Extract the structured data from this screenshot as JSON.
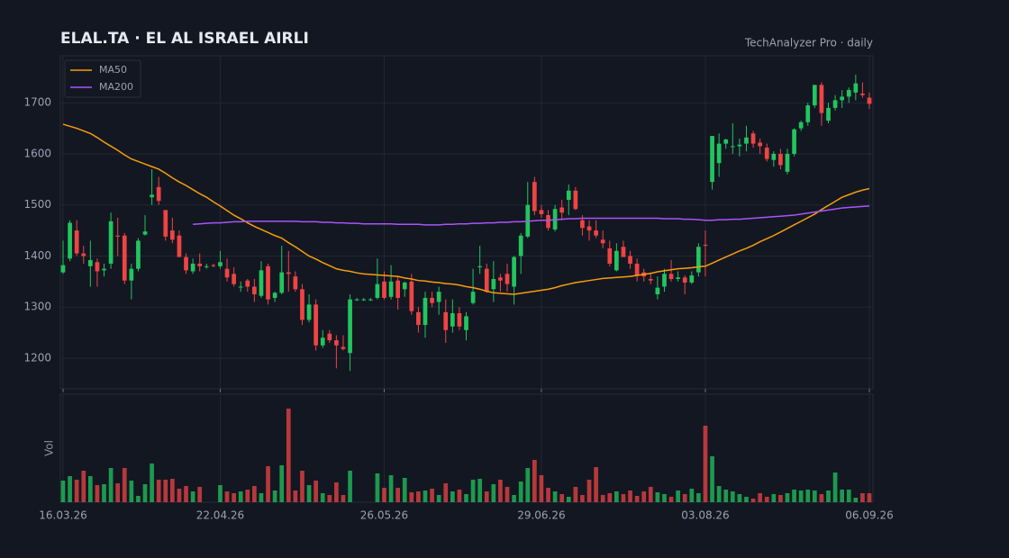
{
  "chart_data": {
    "type": "candlestick",
    "title": "ELAL.TA  ·  EL AL ISRAEL AIRLI",
    "subtitle": "TechAnalyzer Pro · daily",
    "categories": [
      "16.03.26",
      null,
      null,
      null,
      null,
      null,
      null,
      null,
      null,
      null,
      null,
      null,
      null,
      null,
      null,
      null,
      null,
      null,
      null,
      null,
      null,
      null,
      null,
      "22.04.26",
      null,
      null,
      null,
      null,
      null,
      null,
      null,
      null,
      null,
      null,
      null,
      null,
      null,
      null,
      null,
      null,
      null,
      null,
      null,
      null,
      null,
      null,
      null,
      "26.05.26",
      null,
      null,
      null,
      null,
      null,
      null,
      null,
      null,
      null,
      null,
      null,
      null,
      null,
      null,
      null,
      null,
      null,
      null,
      null,
      null,
      null,
      null,
      "29.06.26",
      null,
      null,
      null,
      null,
      null,
      null,
      null,
      null,
      null,
      null,
      null,
      null,
      null,
      null,
      null,
      null,
      null,
      null,
      null,
      null,
      null,
      null,
      null,
      "03.08.26",
      null,
      null,
      null,
      null,
      null,
      null,
      null,
      null,
      null,
      null,
      null,
      null,
      null,
      null,
      null,
      null,
      null,
      null,
      null,
      null,
      null,
      null,
      null,
      "06.09.26"
    ],
    "open": [
      1368,
      1395,
      1450,
      1405,
      1380,
      1388,
      1372,
      1385,
      1440,
      1440,
      1352,
      1375,
      1442,
      1515,
      1535,
      1490,
      1450,
      1440,
      1398,
      1370,
      1385,
      1380,
      1382,
      1380,
      1375,
      1365,
      1340,
      1352,
      1340,
      1322,
      1380,
      1318,
      1328,
      1368,
      1360,
      1335,
      1275,
      1305,
      1225,
      1248,
      1235,
      1222,
      1210,
      1315,
      1315,
      1315,
      1318,
      1350,
      1320,
      1352,
      1335,
      1350,
      1290,
      1265,
      1318,
      1310,
      1290,
      1262,
      1288,
      1255,
      1308,
      1378,
      1375,
      1335,
      1358,
      1365,
      1340,
      1400,
      1438,
      1545,
      1490,
      1480,
      1452,
      1495,
      1510,
      1528,
      1470,
      1458,
      1450,
      1432,
      1415,
      1372,
      1418,
      1400,
      1385,
      1368,
      1355,
      1325,
      1340,
      1365,
      1355,
      1358,
      1348,
      1368,
      1422,
      1545,
      1582,
      1620,
      1615,
      1615,
      1620,
      1640,
      1622,
      1612,
      1588,
      1600,
      1565,
      1600,
      1650,
      1662,
      1695,
      1735,
      1665,
      1690,
      1705,
      1712,
      1720,
      1718,
      1710
    ],
    "high": [
      1430,
      1470,
      1470,
      1420,
      1430,
      1395,
      1385,
      1485,
      1475,
      1445,
      1385,
      1435,
      1480,
      1570,
      1555,
      1490,
      1475,
      1450,
      1405,
      1395,
      1405,
      1385,
      1385,
      1410,
      1395,
      1378,
      1350,
      1355,
      1355,
      1390,
      1385,
      1330,
      1420,
      1410,
      1370,
      1345,
      1325,
      1315,
      1255,
      1255,
      1245,
      1245,
      1325,
      1318,
      1318,
      1318,
      1395,
      1370,
      1382,
      1360,
      1350,
      1365,
      1300,
      1330,
      1330,
      1340,
      1315,
      1315,
      1300,
      1290,
      1375,
      1420,
      1385,
      1390,
      1365,
      1385,
      1400,
      1445,
      1545,
      1555,
      1500,
      1490,
      1500,
      1510,
      1540,
      1535,
      1480,
      1470,
      1470,
      1450,
      1430,
      1425,
      1430,
      1410,
      1395,
      1375,
      1368,
      1360,
      1375,
      1392,
      1370,
      1362,
      1370,
      1425,
      1450,
      1635,
      1640,
      1630,
      1660,
      1630,
      1655,
      1645,
      1630,
      1620,
      1605,
      1610,
      1610,
      1650,
      1665,
      1700,
      1735,
      1740,
      1700,
      1715,
      1725,
      1730,
      1755,
      1740,
      1720
    ],
    "low": [
      1365,
      1390,
      1400,
      1385,
      1340,
      1340,
      1360,
      1375,
      1400,
      1345,
      1315,
      1370,
      1440,
      1500,
      1500,
      1430,
      1425,
      1400,
      1365,
      1365,
      1370,
      1375,
      1378,
      1375,
      1350,
      1340,
      1330,
      1330,
      1310,
      1318,
      1305,
      1310,
      1325,
      1330,
      1330,
      1265,
      1270,
      1215,
      1220,
      1230,
      1180,
      1215,
      1175,
      1312,
      1312,
      1312,
      1315,
      1315,
      1315,
      1295,
      1320,
      1285,
      1250,
      1240,
      1300,
      1285,
      1230,
      1250,
      1255,
      1235,
      1305,
      1365,
      1328,
      1310,
      1330,
      1330,
      1305,
      1365,
      1435,
      1480,
      1475,
      1450,
      1448,
      1470,
      1480,
      1490,
      1440,
      1430,
      1435,
      1415,
      1380,
      1370,
      1398,
      1375,
      1350,
      1350,
      1345,
      1315,
      1330,
      1350,
      1350,
      1325,
      1345,
      1360,
      1360,
      1530,
      1555,
      1610,
      1600,
      1595,
      1605,
      1612,
      1600,
      1585,
      1575,
      1570,
      1560,
      1595,
      1645,
      1655,
      1690,
      1655,
      1660,
      1685,
      1690,
      1700,
      1705,
      1710,
      1688
    ],
    "close": [
      1382,
      1465,
      1405,
      1400,
      1392,
      1370,
      1375,
      1468,
      1438,
      1352,
      1375,
      1430,
      1448,
      1520,
      1508,
      1438,
      1432,
      1398,
      1372,
      1385,
      1380,
      1380,
      1381,
      1388,
      1358,
      1345,
      1340,
      1340,
      1325,
      1372,
      1315,
      1328,
      1368,
      1365,
      1335,
      1275,
      1305,
      1225,
      1240,
      1235,
      1225,
      1218,
      1315,
      1315,
      1315,
      1315,
      1345,
      1318,
      1350,
      1318,
      1348,
      1292,
      1265,
      1318,
      1308,
      1330,
      1255,
      1288,
      1262,
      1282,
      1330,
      1380,
      1330,
      1355,
      1352,
      1345,
      1398,
      1440,
      1500,
      1488,
      1482,
      1455,
      1492,
      1485,
      1528,
      1492,
      1455,
      1450,
      1440,
      1425,
      1385,
      1410,
      1398,
      1385,
      1362,
      1360,
      1352,
      1338,
      1365,
      1355,
      1358,
      1348,
      1362,
      1418,
      1420,
      1635,
      1620,
      1628,
      1615,
      1618,
      1632,
      1620,
      1615,
      1590,
      1600,
      1578,
      1600,
      1648,
      1662,
      1695,
      1735,
      1680,
      1690,
      1705,
      1712,
      1725,
      1738,
      1715,
      1698
    ],
    "up_color": "#22c55e",
    "down_color": "#ef4444",
    "series": [
      {
        "name": "MA50",
        "color": "#f59e0b",
        "values": [
          1658,
          1654,
          1650,
          1645,
          1640,
          1632,
          1623,
          1615,
          1607,
          1598,
          1590,
          1585,
          1580,
          1575,
          1570,
          1562,
          1553,
          1545,
          1538,
          1530,
          1522,
          1515,
          1506,
          1498,
          1489,
          1480,
          1473,
          1465,
          1458,
          1452,
          1446,
          1440,
          1435,
          1426,
          1418,
          1409,
          1400,
          1394,
          1387,
          1381,
          1375,
          1372,
          1370,
          1367,
          1365,
          1364,
          1363,
          1362,
          1361,
          1360,
          1357,
          1355,
          1352,
          1351,
          1349,
          1348,
          1346,
          1345,
          1343,
          1340,
          1338,
          1335,
          1331,
          1328,
          1327,
          1326,
          1325,
          1327,
          1329,
          1331,
          1333,
          1335,
          1338,
          1342,
          1345,
          1348,
          1350,
          1352,
          1354,
          1356,
          1357,
          1358,
          1359,
          1360,
          1362,
          1364,
          1366,
          1369,
          1371,
          1373,
          1375,
          1376,
          1377,
          1379,
          1380,
          1386,
          1392,
          1398,
          1404,
          1410,
          1415,
          1421,
          1428,
          1434,
          1440,
          1447,
          1454,
          1461,
          1468,
          1475,
          1482,
          1491,
          1499,
          1507,
          1515,
          1520,
          1525,
          1529,
          1532
        ]
      },
      {
        "name": "MA200",
        "color": "#a855f7",
        "values": [
          null,
          null,
          null,
          null,
          null,
          null,
          null,
          null,
          null,
          null,
          null,
          null,
          null,
          null,
          null,
          null,
          null,
          null,
          null,
          1462,
          1463,
          1464,
          1465,
          1465,
          1466,
          1467,
          1467,
          1468,
          1468,
          1468,
          1468,
          1468,
          1468,
          1468,
          1468,
          1467,
          1467,
          1467,
          1466,
          1466,
          1465,
          1465,
          1464,
          1464,
          1463,
          1463,
          1463,
          1463,
          1463,
          1462,
          1462,
          1462,
          1462,
          1461,
          1461,
          1461,
          1462,
          1462,
          1463,
          1463,
          1464,
          1464,
          1465,
          1465,
          1466,
          1466,
          1467,
          1467,
          1468,
          1469,
          1470,
          1470,
          1471,
          1472,
          1473,
          1473,
          1474,
          1474,
          1474,
          1474,
          1474,
          1474,
          1474,
          1474,
          1474,
          1474,
          1474,
          1474,
          1473,
          1473,
          1473,
          1472,
          1472,
          1471,
          1470,
          1470,
          1471,
          1471,
          1472,
          1472,
          1473,
          1474,
          1475,
          1476,
          1477,
          1478,
          1479,
          1480,
          1482,
          1484,
          1486,
          1488,
          1490,
          1492,
          1494,
          1495,
          1496,
          1497,
          1498
        ]
      }
    ],
    "volume": {
      "label": "Vol",
      "ylim": [
        0,
        120
      ],
      "values": [
        24,
        29,
        25,
        35,
        29,
        19,
        20,
        38,
        21,
        38,
        24,
        7,
        20,
        43,
        25,
        25,
        26,
        15,
        18,
        12,
        17,
        0,
        0,
        19,
        12,
        10,
        12,
        14,
        18,
        10,
        40,
        13,
        41,
        104,
        13,
        35,
        19,
        24,
        10,
        8,
        22,
        8,
        35,
        0,
        0,
        0,
        32,
        16,
        30,
        16,
        27,
        11,
        12,
        13,
        15,
        8,
        21,
        12,
        14,
        9,
        25,
        26,
        12,
        20,
        25,
        17,
        8,
        23,
        38,
        47,
        30,
        16,
        12,
        9,
        6,
        17,
        8,
        25,
        39,
        8,
        10,
        12,
        9,
        13,
        7,
        12,
        17,
        11,
        9,
        6,
        13,
        9,
        15,
        10,
        85,
        51,
        18,
        14,
        12,
        9,
        6,
        4,
        10,
        6,
        9,
        8,
        10,
        14,
        13,
        14,
        13,
        9,
        13,
        33,
        14,
        14,
        5,
        10,
        10
      ]
    },
    "ylim": [
      1140,
      1792
    ],
    "yticks": [
      1200,
      1300,
      1400,
      1500,
      1600,
      1700
    ],
    "grid": true,
    "legend": "upper left"
  }
}
